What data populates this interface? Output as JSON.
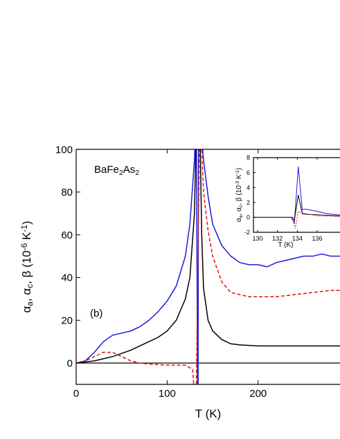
{
  "chart_data": [
    {
      "type": "line",
      "annotations": [
        [
          [
            "BaFe"
          ],
          [
            "2",
            "sub"
          ],
          [
            "As"
          ],
          [
            "2",
            "sub"
          ]
        ],
        [
          [
            "(b)"
          ]
        ]
      ],
      "x_label": [
        [
          "T (K)"
        ]
      ],
      "y_label": [
        [
          "α"
        ],
        [
          "a",
          "sub"
        ],
        [
          ", α"
        ],
        [
          "c",
          "sub"
        ],
        [
          ", β (10"
        ],
        [
          "-6",
          "sup"
        ],
        [
          " K"
        ],
        [
          "-1",
          "sup"
        ],
        [
          ")"
        ]
      ],
      "xlim": [
        0,
        290
      ],
      "ylim": [
        -10,
        100
      ],
      "xticks": [
        0,
        100,
        200
      ],
      "yticks": [
        0,
        20,
        40,
        60,
        80,
        100
      ],
      "hline": 0,
      "series": [
        {
          "color": "#1a1adc",
          "dashed": false,
          "x": [
            0,
            10,
            20,
            30,
            40,
            50,
            60,
            70,
            80,
            90,
            100,
            110,
            120,
            125,
            130,
            132,
            133.5,
            134,
            134.5,
            139,
            140,
            145,
            150,
            160,
            170,
            180,
            190,
            200,
            210,
            220,
            230,
            240,
            250,
            260,
            270,
            280,
            290
          ],
          "values": [
            0,
            1,
            5,
            10,
            13,
            14,
            15,
            17,
            20,
            24,
            29,
            36,
            50,
            65,
            95,
            120,
            -15,
            -15,
            120,
            100,
            95,
            78,
            65,
            55,
            50,
            47,
            46,
            46,
            45,
            47,
            48,
            49,
            50,
            50,
            51,
            50,
            50
          ]
        },
        {
          "color": "#000000",
          "dashed": false,
          "x": [
            0,
            10,
            20,
            30,
            40,
            50,
            60,
            70,
            80,
            90,
            100,
            110,
            120,
            125,
            130,
            132,
            136,
            138,
            140,
            145,
            150,
            160,
            170,
            180,
            200,
            220,
            240,
            260,
            280,
            290
          ],
          "values": [
            0,
            0.5,
            1,
            2,
            3,
            4.5,
            6,
            8,
            10,
            12,
            15,
            20,
            30,
            40,
            70,
            110,
            110,
            60,
            35,
            20,
            15,
            11,
            9,
            8.5,
            8,
            8,
            8,
            8,
            8,
            8
          ]
        },
        {
          "color": "#e01010",
          "dashed": true,
          "x": [
            0,
            10,
            20,
            30,
            40,
            50,
            60,
            70,
            80,
            100,
            120,
            128,
            130,
            132,
            136,
            138,
            140,
            145,
            150,
            160,
            170,
            180,
            190,
            200,
            220,
            240,
            260,
            280,
            290
          ],
          "values": [
            0,
            1,
            3,
            5,
            5,
            3,
            1,
            0,
            -0.5,
            -1,
            -1,
            -3,
            -15,
            -15,
            120,
            100,
            80,
            62,
            50,
            38,
            33,
            32,
            31,
            31,
            31,
            32,
            33,
            34,
            34
          ]
        }
      ]
    },
    {
      "type": "line",
      "x_label": [
        [
          "T (K)"
        ]
      ],
      "y_label": [
        [
          "α"
        ],
        [
          "a",
          "sub"
        ],
        [
          ", α"
        ],
        [
          "c",
          "sub"
        ],
        [
          ", β (10"
        ],
        [
          "-3",
          "sup"
        ],
        [
          " K"
        ],
        [
          "-1",
          "sup"
        ],
        [
          ")"
        ]
      ],
      "xlim": [
        129.58,
        138.3
      ],
      "ylim": [
        -2,
        8
      ],
      "xticks": [
        130,
        132,
        134,
        136
      ],
      "yticks": [
        -2,
        0,
        2,
        4,
        6,
        8
      ],
      "series": [
        {
          "color": "#1a1adc",
          "dashed": false,
          "x": [
            129.58,
            133.4,
            133.7,
            134.1,
            134.5,
            134.8,
            136,
            137,
            138.3
          ],
          "values": [
            0,
            0,
            -0.8,
            6.8,
            1,
            1.1,
            0.8,
            0.5,
            0.3
          ]
        },
        {
          "color": "#000000",
          "dashed": false,
          "x": [
            129.58,
            133.5,
            133.7,
            134.1,
            134.5,
            135,
            138.3
          ],
          "values": [
            0,
            0,
            -0.4,
            3,
            0.5,
            0.4,
            0.2
          ]
        },
        {
          "color": "#e01010",
          "dashed": true,
          "x": [
            129.58,
            133.5,
            133.8,
            134.1,
            134.5,
            136,
            138.3
          ],
          "values": [
            0,
            0,
            -1.5,
            0.8,
            0.6,
            0.2,
            0.1
          ]
        }
      ]
    }
  ]
}
